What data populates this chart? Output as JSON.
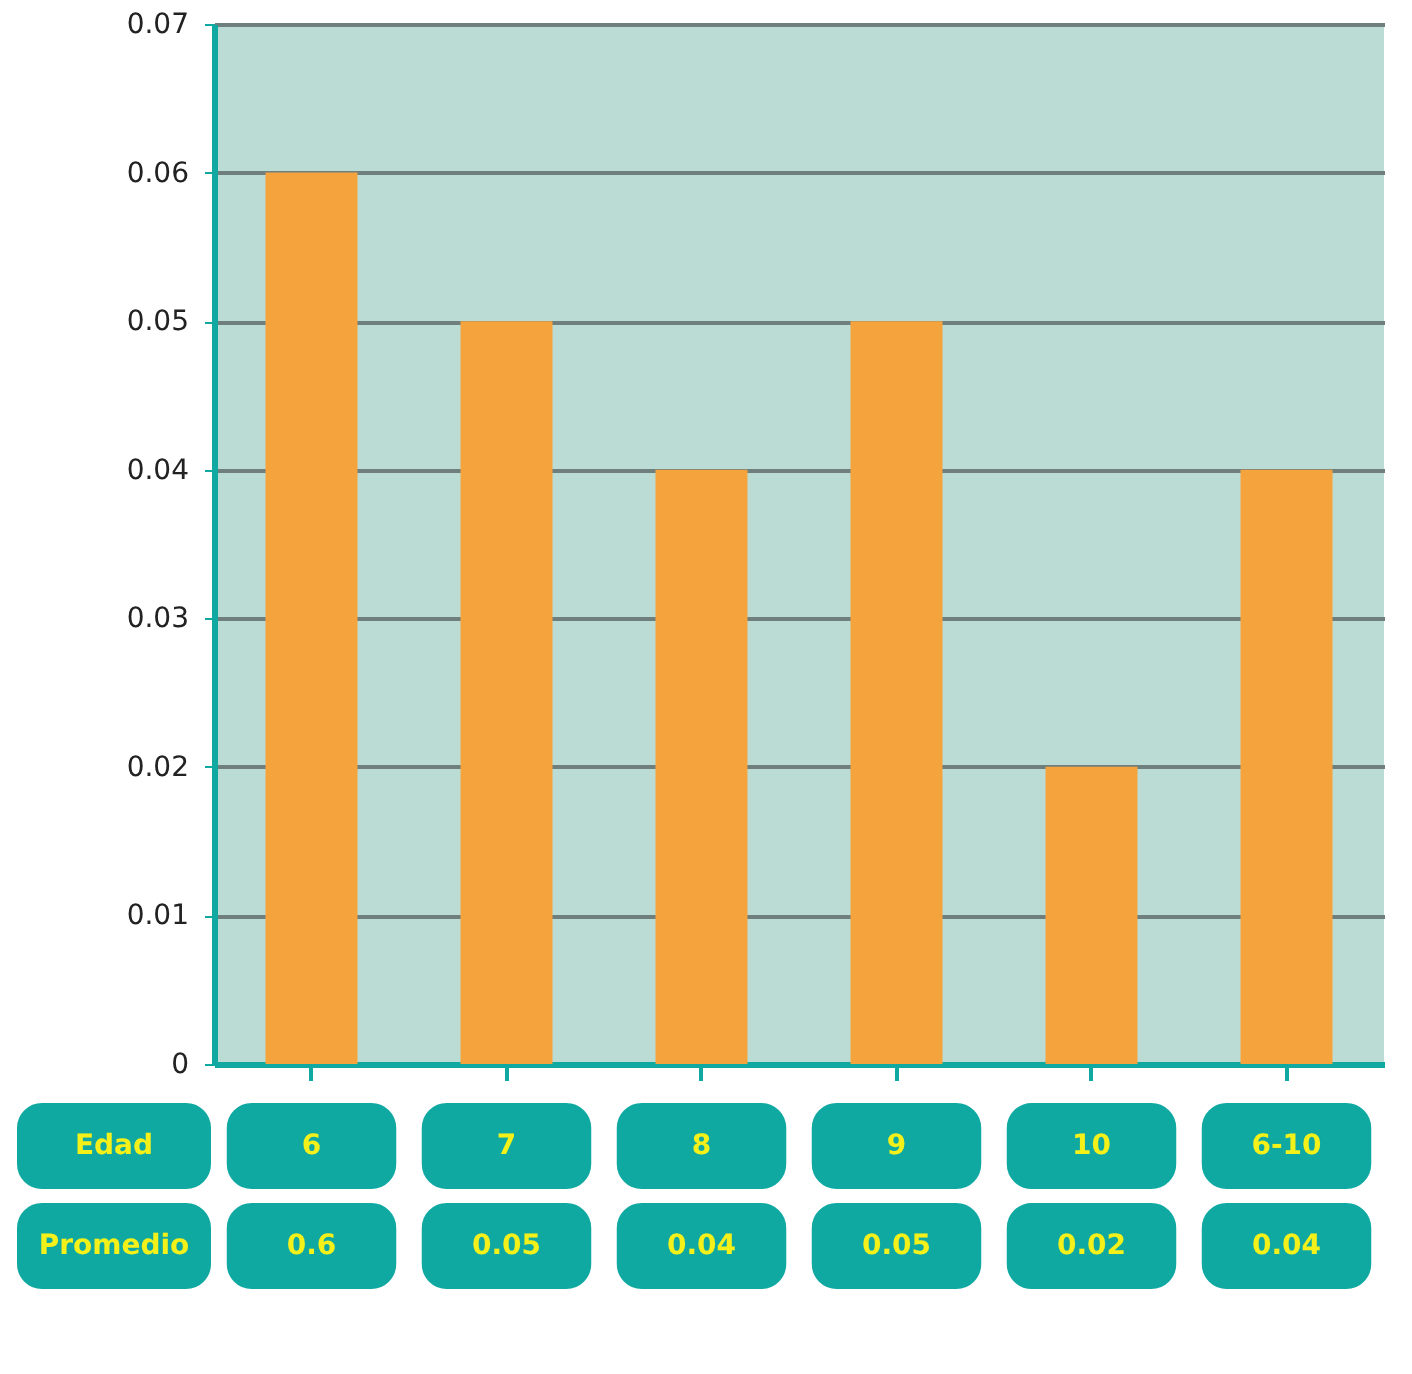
{
  "chart_data": {
    "type": "bar",
    "categories": [
      "6",
      "7",
      "8",
      "9",
      "10",
      "6-10"
    ],
    "values": [
      0.06,
      0.05,
      0.04,
      0.05,
      0.02,
      0.04
    ],
    "value_labels": [
      null,
      "0.05",
      "0.04",
      "0.05",
      "0.02",
      "0.04"
    ],
    "color": "#f5a33c",
    "xlabel": "Edad",
    "annotations": [
      "Promedio",
      "0.6"
    ],
    "ylim": [
      0,
      0.07
    ],
    "yticks": [
      {
        "value": 0,
        "label": "0"
      },
      0.01,
      0.02,
      0.03,
      0.04,
      0.05,
      0.06,
      0.07
    ],
    "grid": "y",
    "tick_labels": "y"
  }
}
